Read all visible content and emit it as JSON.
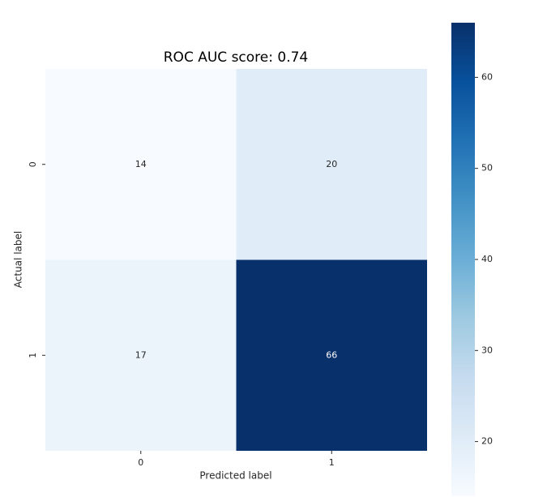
{
  "chart_data": {
    "type": "heatmap",
    "title": "ROC AUC score: 0.74",
    "x_label": "Predicted label",
    "y_label": "Actual label",
    "x_categories": [
      "0",
      "1"
    ],
    "y_categories": [
      "0",
      "1"
    ],
    "values": [
      [
        14,
        20
      ],
      [
        17,
        66
      ]
    ],
    "colormap": [
      "#f7fbff",
      "#deebf7",
      "#c6dbef",
      "#9ecae1",
      "#6baed6",
      "#4292c6",
      "#2171b5",
      "#08519c",
      "#08306b"
    ],
    "colorbar_lim": [
      14,
      66
    ],
    "colorbar_ticks": [
      20,
      30,
      40,
      50,
      60
    ]
  }
}
